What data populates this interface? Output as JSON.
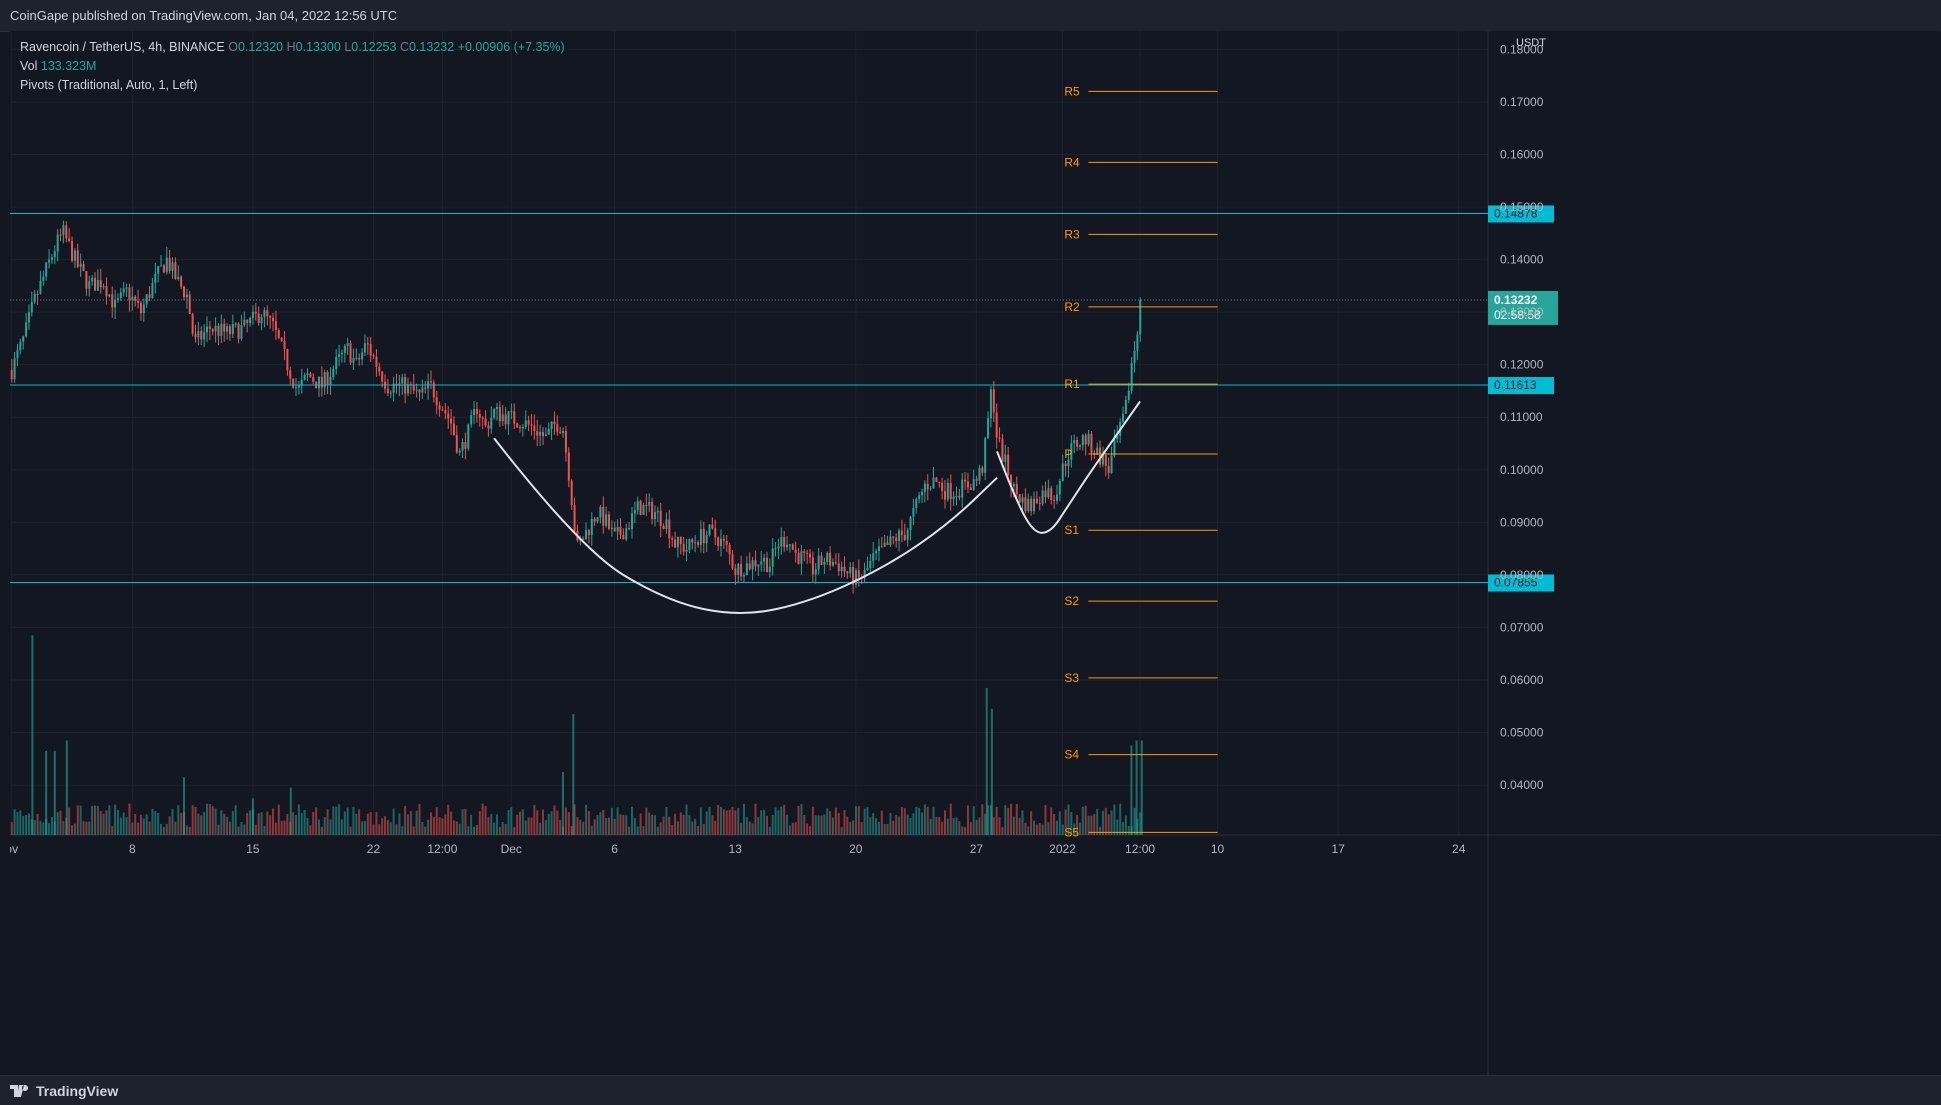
{
  "header": {
    "published": "CoinGape published on TradingView.com, Jan 04, 2022 12:56 UTC"
  },
  "legend": {
    "symbol": "Ravencoin / TetherUS, 4h, BINANCE",
    "o_label": "O",
    "o": "0.12320",
    "h_label": "H",
    "h": "0.13300",
    "l_label": "L",
    "l": "0.12253",
    "c_label": "C",
    "c": "0.13232",
    "change": "+0.00906 (+7.35%)",
    "vol_label": "Vol",
    "vol": "133.323M",
    "pivots": "Pivots (Traditional, Auto, 1, Left)"
  },
  "footer": {
    "brand": "TradingView"
  },
  "colors": {
    "up": "#26a69a",
    "down": "#ef5350",
    "pivot": "#ff9800",
    "hline": "#00bcd4",
    "background": "#131722",
    "grid": "#1e222d"
  },
  "chart_data": {
    "type": "candlestick",
    "currency_label": "USDT",
    "y_ticks": [
      "0.18000",
      "0.17000",
      "0.16000",
      "0.15000",
      "0.14000",
      "0.13000",
      "0.12000",
      "0.11000",
      "0.10000",
      "0.09000",
      "0.08000",
      "0.07000",
      "0.06000",
      "0.05000",
      "0.04000"
    ],
    "ylim": [
      0.0305,
      0.1835
    ],
    "x_ticks": [
      "ov",
      "8",
      "15",
      "22",
      "12:00",
      "Dec",
      "6",
      "13",
      "20",
      "27",
      "2022",
      "12:00",
      "10",
      "17",
      "24"
    ],
    "x_tick_days": [
      1.0,
      8.0,
      15.0,
      22.0,
      26.0,
      30.0,
      36.0,
      43.0,
      50.0,
      57.0,
      62.0,
      66.5,
      71.0,
      78.0,
      85.0
    ],
    "xlim": [
      0.9,
      86.7
    ],
    "horizontal_lines": [
      {
        "value": 0.14878,
        "label": "0.14878"
      },
      {
        "value": 0.11613,
        "label": "0.11613"
      },
      {
        "value": 0.07855,
        "label": "0.07855"
      }
    ],
    "last_price": {
      "value": 0.13232,
      "label": "0.13232",
      "countdown": "02:58:58"
    },
    "pivots": [
      {
        "name": "R5",
        "value": 0.172
      },
      {
        "name": "R4",
        "value": 0.1585
      },
      {
        "name": "R3",
        "value": 0.1448
      },
      {
        "name": "R2",
        "value": 0.131
      },
      {
        "name": "R1",
        "value": 0.1163
      },
      {
        "name": "P",
        "value": 0.103
      },
      {
        "name": "S1",
        "value": 0.0885
      },
      {
        "name": "S2",
        "value": 0.075
      },
      {
        "name": "S3",
        "value": 0.0604
      },
      {
        "name": "S4",
        "value": 0.0458
      },
      {
        "name": "S5",
        "value": 0.031
      }
    ],
    "pivot_range_days": [
      63.5,
      71.0
    ],
    "price_path": [
      [
        1.0,
        0.119
      ],
      [
        1.7,
        0.125
      ],
      [
        2.3,
        0.132
      ],
      [
        3.0,
        0.138
      ],
      [
        3.6,
        0.143
      ],
      [
        4.0,
        0.145
      ],
      [
        4.8,
        0.139
      ],
      [
        5.5,
        0.135
      ],
      [
        6.3,
        0.136
      ],
      [
        7.0,
        0.131
      ],
      [
        7.7,
        0.134
      ],
      [
        8.5,
        0.13
      ],
      [
        9.3,
        0.136
      ],
      [
        10.0,
        0.14
      ],
      [
        10.6,
        0.136
      ],
      [
        11.2,
        0.133
      ],
      [
        11.6,
        0.124
      ],
      [
        12.5,
        0.127
      ],
      [
        13.5,
        0.126
      ],
      [
        14.5,
        0.127
      ],
      [
        15.5,
        0.13
      ],
      [
        16.2,
        0.127
      ],
      [
        17.0,
        0.12
      ],
      [
        17.6,
        0.115
      ],
      [
        18.2,
        0.118
      ],
      [
        19.0,
        0.116
      ],
      [
        19.8,
        0.12
      ],
      [
        20.5,
        0.123
      ],
      [
        21.0,
        0.12
      ],
      [
        21.6,
        0.124
      ],
      [
        22.2,
        0.12
      ],
      [
        22.8,
        0.116
      ],
      [
        23.8,
        0.116
      ],
      [
        24.7,
        0.114
      ],
      [
        25.3,
        0.116
      ],
      [
        26.0,
        0.112
      ],
      [
        26.5,
        0.109
      ],
      [
        27.0,
        0.103
      ],
      [
        27.5,
        0.107
      ],
      [
        28.0,
        0.112
      ],
      [
        28.5,
        0.108
      ],
      [
        29.0,
        0.111
      ],
      [
        29.8,
        0.11
      ],
      [
        30.7,
        0.109
      ],
      [
        31.3,
        0.108
      ],
      [
        32.0,
        0.106
      ],
      [
        32.6,
        0.109
      ],
      [
        33.0,
        0.108
      ],
      [
        33.4,
        0.098
      ],
      [
        33.8,
        0.085
      ],
      [
        34.5,
        0.089
      ],
      [
        35.0,
        0.092
      ],
      [
        35.5,
        0.09
      ],
      [
        36.0,
        0.087
      ],
      [
        36.7,
        0.089
      ],
      [
        37.4,
        0.093
      ],
      [
        38.3,
        0.092
      ],
      [
        39.0,
        0.09
      ],
      [
        39.5,
        0.086
      ],
      [
        40.2,
        0.085
      ],
      [
        40.8,
        0.087
      ],
      [
        41.5,
        0.088
      ],
      [
        42.0,
        0.087
      ],
      [
        42.5,
        0.085
      ],
      [
        43.0,
        0.081
      ],
      [
        43.8,
        0.082
      ],
      [
        44.5,
        0.083
      ],
      [
        45.0,
        0.082
      ],
      [
        45.5,
        0.086
      ],
      [
        46.0,
        0.087
      ],
      [
        46.5,
        0.084
      ],
      [
        47.0,
        0.083
      ],
      [
        47.5,
        0.081
      ],
      [
        48.2,
        0.083
      ],
      [
        49.0,
        0.082
      ],
      [
        49.6,
        0.08
      ],
      [
        50.1,
        0.079
      ],
      [
        50.5,
        0.08
      ],
      [
        51.0,
        0.083
      ],
      [
        51.7,
        0.085
      ],
      [
        52.3,
        0.087
      ],
      [
        52.9,
        0.088
      ],
      [
        53.5,
        0.093
      ],
      [
        54.0,
        0.097
      ],
      [
        54.6,
        0.098
      ],
      [
        55.2,
        0.096
      ],
      [
        55.8,
        0.096
      ],
      [
        56.4,
        0.097
      ],
      [
        57.0,
        0.098
      ],
      [
        57.4,
        0.101
      ],
      [
        57.7,
        0.11
      ],
      [
        57.9,
        0.116
      ],
      [
        58.2,
        0.106
      ],
      [
        58.7,
        0.101
      ],
      [
        59.2,
        0.096
      ],
      [
        59.7,
        0.094
      ],
      [
        60.2,
        0.093
      ],
      [
        60.6,
        0.095
      ],
      [
        61.0,
        0.096
      ],
      [
        61.5,
        0.095
      ],
      [
        61.9,
        0.099
      ],
      [
        62.3,
        0.103
      ],
      [
        62.8,
        0.105
      ],
      [
        63.3,
        0.106
      ],
      [
        63.8,
        0.104
      ],
      [
        64.3,
        0.102
      ],
      [
        64.7,
        0.1
      ],
      [
        65.0,
        0.104
      ],
      [
        65.4,
        0.108
      ],
      [
        65.7,
        0.112
      ],
      [
        66.0,
        0.12
      ],
      [
        66.3,
        0.125
      ],
      [
        66.6,
        0.1323
      ]
    ],
    "volume_spikes": [
      [
        2.2,
        0.038
      ],
      [
        3.0,
        0.016
      ],
      [
        3.5,
        0.016
      ],
      [
        4.2,
        0.018
      ],
      [
        11.0,
        0.011
      ],
      [
        15.0,
        0.007
      ],
      [
        17.2,
        0.009
      ],
      [
        33.0,
        0.012
      ],
      [
        33.6,
        0.023
      ],
      [
        57.6,
        0.028
      ],
      [
        57.9,
        0.024
      ],
      [
        66.0,
        0.017
      ],
      [
        66.3,
        0.018
      ],
      [
        66.6,
        0.018
      ]
    ],
    "patterns": [
      {
        "name": "cup",
        "points": [
          [
            29.0,
            0.106
          ],
          [
            34.0,
            0.085
          ],
          [
            39.0,
            0.075
          ],
          [
            43.3,
            0.072
          ],
          [
            47.5,
            0.075
          ],
          [
            52.0,
            0.082
          ],
          [
            55.5,
            0.09
          ],
          [
            58.2,
            0.0985
          ]
        ]
      },
      {
        "name": "handle",
        "points": [
          [
            58.2,
            0.1035
          ],
          [
            59.2,
            0.095
          ],
          [
            60.3,
            0.088
          ],
          [
            61.3,
            0.088
          ],
          [
            62.3,
            0.093
          ],
          [
            63.5,
            0.099
          ],
          [
            65.0,
            0.106
          ],
          [
            66.5,
            0.113
          ]
        ]
      }
    ]
  }
}
